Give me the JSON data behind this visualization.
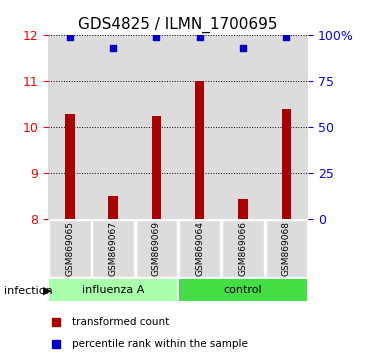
{
  "title": "GDS4825 / ILMN_1700695",
  "samples": [
    "GSM869065",
    "GSM869067",
    "GSM869069",
    "GSM869064",
    "GSM869066",
    "GSM869068"
  ],
  "transformed_counts": [
    10.3,
    8.5,
    10.25,
    11.0,
    8.45,
    10.4
  ],
  "percentile_ranks": [
    99,
    93,
    99,
    99,
    93,
    99
  ],
  "bar_color": "#AA0000",
  "dot_color": "#0000CC",
  "ylim_left": [
    8,
    12
  ],
  "ylim_right": [
    0,
    100
  ],
  "yticks_left": [
    8,
    9,
    10,
    11,
    12
  ],
  "yticks_right": [
    0,
    25,
    50,
    75,
    100
  ],
  "yticklabels_right": [
    "0",
    "25",
    "50",
    "75",
    "100%"
  ],
  "bg_color": "#DCDCDC",
  "title_fontsize": 11,
  "tick_fontsize": 9,
  "groups": [
    {
      "label": "influenza A",
      "start": 0,
      "end": 2,
      "color": "#AAFFAA"
    },
    {
      "label": "control",
      "start": 3,
      "end": 5,
      "color": "#44DD44"
    }
  ]
}
